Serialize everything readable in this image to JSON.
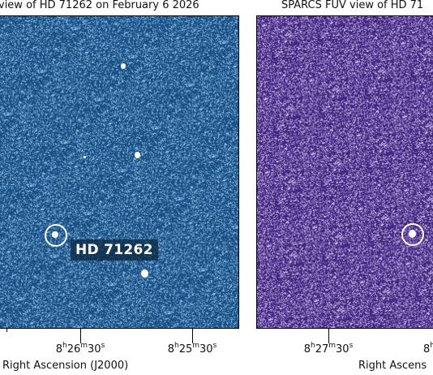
{
  "left_panel": {
    "title": "view of HD 71262 on February 6 2026",
    "target_label": "HD 71262",
    "background_color": "#1e5a94",
    "x_ticks": [
      {
        "h": "8",
        "m": "26",
        "s": "30"
      },
      {
        "h": "8",
        "m": "25",
        "s": "30"
      }
    ],
    "x_axis_label": "Right Ascension (J2000)"
  },
  "right_panel": {
    "title": "SPARCS FUV view of HD 71",
    "background_color": "#4b2c8f",
    "x_ticks": [
      {
        "h": "8",
        "m": "27",
        "s": "30"
      },
      {
        "h": "8",
        "m": "26",
        "s": ""
      }
    ],
    "x_axis_label": "Right Ascens"
  },
  "units": {
    "h": "h",
    "m": "m",
    "s": "s"
  }
}
